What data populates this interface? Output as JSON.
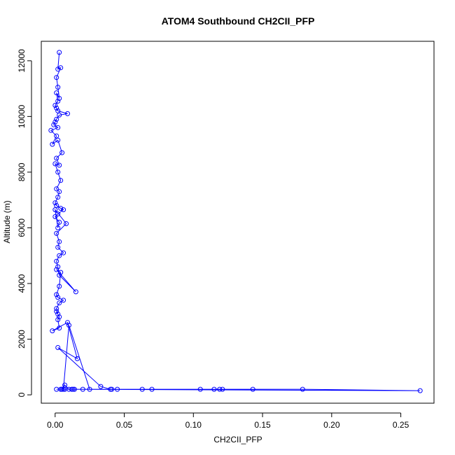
{
  "chart_data": {
    "type": "line",
    "title": "ATOM4 Southbound CH2CII_PFP",
    "xlabel": "CH2CII_PFP",
    "ylabel": "Altitude (m)",
    "xlim": [
      -0.01,
      0.274
    ],
    "ylim": [
      -300,
      12700
    ],
    "x_ticks": [
      0.0,
      0.05,
      0.1,
      0.15,
      0.2,
      0.25
    ],
    "x_tick_labels": [
      "0.00",
      "0.05",
      "0.10",
      "0.15",
      "0.20",
      "0.25"
    ],
    "y_ticks": [
      0,
      2000,
      4000,
      6000,
      8000,
      10000,
      12000
    ],
    "y_tick_labels": [
      "0",
      "2000",
      "4000",
      "6000",
      "8000",
      "10000",
      "12000"
    ],
    "series_color": "#0000ff",
    "grid": false,
    "legend": "none",
    "x": [
      0.003,
      0.002,
      0.004,
      0.001,
      0.002,
      0.003,
      0.001,
      0.002,
      0.0,
      0.001,
      0.002,
      0.009,
      0.003,
      0.001,
      0.0,
      -0.001,
      0.002,
      -0.003,
      0.001,
      -0.002,
      0.002,
      0.005,
      0.001,
      0.003,
      0.0,
      0.002,
      0.004,
      0.001,
      0.003,
      0.002,
      0.0,
      0.001,
      0.004,
      0.006,
      0.002,
      0.0,
      0.003,
      0.002,
      0.0,
      0.008,
      0.001,
      0.003,
      0.002,
      0.006,
      0.003,
      0.001,
      0.002,
      0.003,
      0.015,
      0.001,
      0.004,
      0.003,
      0.001,
      0.002,
      0.006,
      0.003,
      0.001,
      0.002,
      0.001,
      0.003,
      0.002,
      0.003,
      -0.002,
      0.009,
      0.016,
      0.002,
      0.033,
      0.04,
      0.013,
      0.02,
      0.005,
      0.007,
      0.041,
      0.012,
      0.01,
      0.007,
      0.005,
      0.014,
      0.063,
      0.07,
      0.045,
      0.105,
      0.119,
      0.121,
      0.115,
      0.143,
      0.179,
      0.264,
      0.001,
      0.025,
      0.01,
      0.006,
      0.004
    ],
    "y": [
      12300,
      11700,
      11750,
      11400,
      11050,
      10650,
      10850,
      10550,
      10400,
      10300,
      10200,
      10100,
      10050,
      9900,
      9800,
      9700,
      9600,
      9500,
      9300,
      9000,
      9150,
      8700,
      8500,
      8250,
      8300,
      8000,
      7700,
      7400,
      7300,
      7100,
      6900,
      6800,
      6700,
      6650,
      6500,
      6400,
      6200,
      6000,
      6650,
      6150,
      5800,
      5500,
      5300,
      5100,
      5000,
      4800,
      4600,
      4300,
      3700,
      4500,
      4400,
      3900,
      3600,
      3500,
      3400,
      3300,
      3100,
      2900,
      3000,
      2800,
      2700,
      2400,
      2300,
      2600,
      1300,
      1700,
      300,
      200,
      200,
      200,
      200,
      200,
      200,
      200,
      200,
      350,
      200,
      200,
      200,
      200,
      200,
      200,
      200,
      200,
      200,
      200,
      200,
      150,
      200,
      200,
      2500,
      200,
      200
    ]
  }
}
